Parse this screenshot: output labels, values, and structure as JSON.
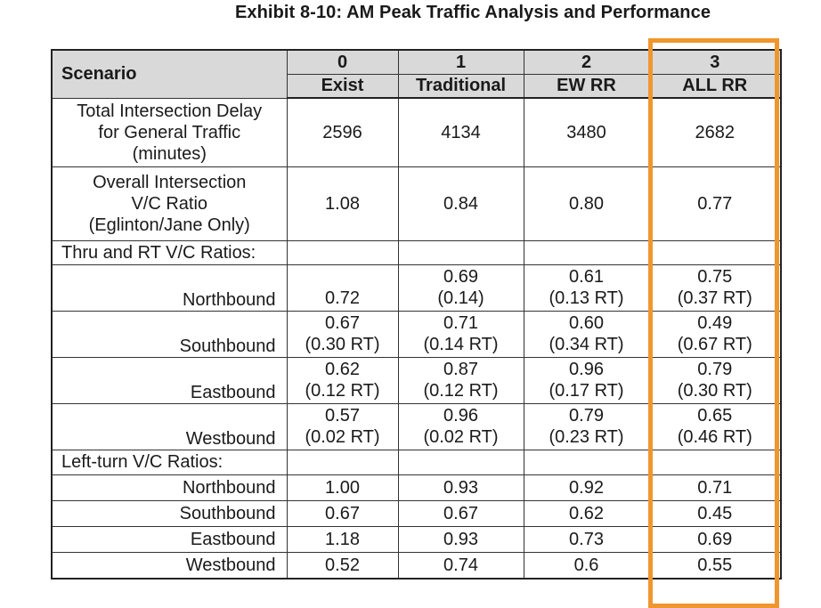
{
  "title": "Exhibit 8-10: AM Peak Traffic Analysis and Performance",
  "header": {
    "scenario_label": "Scenario",
    "columns": [
      {
        "number": "0",
        "name": "Exist"
      },
      {
        "number": "1",
        "name": "Traditional"
      },
      {
        "number": "2",
        "name": "EW RR"
      },
      {
        "number": "3",
        "name": "ALL RR"
      }
    ]
  },
  "rows": {
    "delay": {
      "label": [
        "Total Intersection Delay",
        "for General Traffic",
        "(minutes)"
      ],
      "values": [
        "2596",
        "4134",
        "3480",
        "2682"
      ]
    },
    "vc_overall": {
      "label": [
        "Overall Intersection",
        "V/C Ratio",
        "(Eglinton/Jane Only)"
      ],
      "values": [
        "1.08",
        "0.84",
        "0.80",
        "0.77"
      ]
    }
  },
  "thru_section": {
    "label": "Thru and RT V/C Ratios:",
    "rows": [
      {
        "direction": "Northbound",
        "values": [
          [
            "",
            "0.72"
          ],
          [
            "0.69",
            "(0.14)"
          ],
          [
            "0.61",
            "(0.13 RT)"
          ],
          [
            "0.75",
            "(0.37 RT)"
          ]
        ]
      },
      {
        "direction": "Southbound",
        "values": [
          [
            "0.67",
            "(0.30 RT)"
          ],
          [
            "0.71",
            "(0.14 RT)"
          ],
          [
            "0.60",
            "(0.34 RT)"
          ],
          [
            "0.49",
            "(0.67 RT)"
          ]
        ]
      },
      {
        "direction": "Eastbound",
        "values": [
          [
            "0.62",
            "(0.12 RT)"
          ],
          [
            "0.87",
            "(0.12 RT)"
          ],
          [
            "0.96",
            "(0.17 RT)"
          ],
          [
            "0.79",
            "(0.30 RT)"
          ]
        ]
      },
      {
        "direction": "Westbound",
        "values": [
          [
            "0.57",
            "(0.02 RT)"
          ],
          [
            "0.96",
            "(0.02 RT)"
          ],
          [
            "0.79",
            "(0.23 RT)"
          ],
          [
            "0.65",
            "(0.46 RT)"
          ]
        ]
      }
    ]
  },
  "left_section": {
    "label": "Left-turn V/C Ratios:",
    "rows": [
      {
        "direction": "Northbound",
        "values": [
          "1.00",
          "0.93",
          "0.92",
          "0.71"
        ]
      },
      {
        "direction": "Southbound",
        "values": [
          "0.67",
          "0.67",
          "0.62",
          "0.45"
        ]
      },
      {
        "direction": "Eastbound",
        "values": [
          "1.18",
          "0.93",
          "0.73",
          "0.69"
        ]
      },
      {
        "direction": "Westbound",
        "values": [
          "0.52",
          "0.74",
          "0.6",
          "0.55"
        ]
      }
    ]
  },
  "colors": {
    "highlight": "#f0962e",
    "header_bg": "#d9d9d9"
  }
}
